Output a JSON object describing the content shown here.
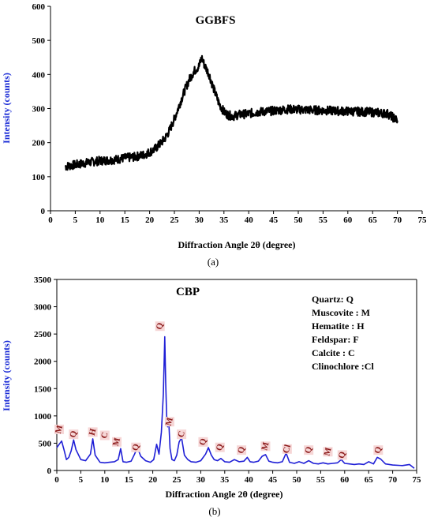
{
  "colors": {
    "series_a": "#000000",
    "series_b": "#1f1fd6",
    "ylabel_b": "#1f1fd6",
    "peak_label": "#8b1a1a",
    "peak_bg": "#f6d6d6"
  },
  "chart_data": [
    {
      "type": "line",
      "panel_label": "(a)",
      "title": "GGBFS",
      "xlabel": "Diffraction Angle 2θ  (degree)",
      "ylabel": "Intensity (counts)",
      "xlim": [
        0,
        75
      ],
      "ylim": [
        0,
        600
      ],
      "xticks": [
        0,
        5,
        10,
        15,
        20,
        25,
        30,
        35,
        40,
        45,
        50,
        55,
        60,
        65,
        70,
        75
      ],
      "yticks": [
        0,
        100,
        200,
        300,
        400,
        500,
        600
      ],
      "grid": false,
      "series": [
        {
          "x": [
            3,
            5,
            7,
            9,
            11,
            13,
            15,
            17,
            19,
            20,
            21,
            22,
            23,
            24,
            25,
            26,
            27,
            28,
            29,
            30,
            30.5,
            31,
            32,
            33,
            34,
            35,
            36,
            37,
            38,
            40,
            42,
            44,
            46,
            48,
            50,
            52,
            54,
            56,
            58,
            60,
            62,
            64,
            66,
            68,
            70
          ],
          "y": [
            130,
            135,
            140,
            145,
            148,
            150,
            155,
            158,
            165,
            172,
            180,
            195,
            210,
            235,
            270,
            310,
            350,
            385,
            410,
            425,
            450,
            430,
            400,
            355,
            315,
            290,
            280,
            278,
            282,
            285,
            290,
            292,
            295,
            298,
            297,
            296,
            295,
            294,
            293,
            292,
            291,
            290,
            288,
            285,
            265
          ]
        }
      ]
    },
    {
      "type": "line",
      "panel_label": "(b)",
      "title": "CBP",
      "xlabel": "Diffraction Angle 2θ  (degree)",
      "ylabel": "Intensity (counts)",
      "xlim": [
        0,
        75
      ],
      "ylim": [
        0,
        3500
      ],
      "xticks": [
        0,
        5,
        10,
        15,
        20,
        25,
        30,
        35,
        40,
        45,
        50,
        55,
        60,
        65,
        70,
        75
      ],
      "yticks": [
        0,
        500,
        1000,
        1500,
        2000,
        2500,
        3000,
        3500
      ],
      "grid": false,
      "legend": [
        "Quartz: Q",
        "Muscovite : M",
        "Hematite : H",
        "Feldspar: F",
        "Calcite : C",
        "Clinochlore :Cl"
      ],
      "legend_position": "top-right",
      "peak_labels": [
        {
          "label": "M",
          "x": 0.5,
          "y": 710
        },
        {
          "label": "Q",
          "x": 3.5,
          "y": 620
        },
        {
          "label": "H",
          "x": 7.5,
          "y": 660
        },
        {
          "label": "C",
          "x": 10,
          "y": 600
        },
        {
          "label": "M",
          "x": 12.5,
          "y": 480
        },
        {
          "label": "Q",
          "x": 16.5,
          "y": 380
        },
        {
          "label": "Q",
          "x": 21.5,
          "y": 2600
        },
        {
          "label": "M",
          "x": 23.5,
          "y": 850
        },
        {
          "label": "C",
          "x": 26,
          "y": 620
        },
        {
          "label": "Q",
          "x": 30.5,
          "y": 480
        },
        {
          "label": "Q",
          "x": 34,
          "y": 380
        },
        {
          "label": "Q",
          "x": 38.5,
          "y": 330
        },
        {
          "label": "M",
          "x": 43.5,
          "y": 400
        },
        {
          "label": "Cl",
          "x": 48,
          "y": 350
        },
        {
          "label": "Q",
          "x": 52.5,
          "y": 330
        },
        {
          "label": "M",
          "x": 56.5,
          "y": 300
        },
        {
          "label": "Q",
          "x": 59.5,
          "y": 240
        },
        {
          "label": "Q",
          "x": 67,
          "y": 330
        }
      ],
      "series": [
        {
          "x": [
            0,
            0.5,
            1,
            1.5,
            2,
            2.5,
            3,
            3.5,
            4,
            5,
            6,
            7,
            7.5,
            8,
            9,
            10,
            11,
            12,
            12.8,
            13.3,
            13.8,
            14.5,
            15.5,
            16.2,
            16.8,
            17.5,
            18.5,
            19.5,
            20.2,
            20.8,
            21.3,
            21.8,
            22.2,
            22.5,
            22.7,
            22.9,
            23.1,
            23.3,
            23.6,
            24,
            24.5,
            25,
            25.5,
            26,
            26.6,
            27.3,
            28,
            29,
            30,
            31,
            31.6,
            32.2,
            32.8,
            33.5,
            34.2,
            35,
            36,
            37,
            38,
            39,
            39.7,
            40.3,
            41,
            42,
            42.8,
            43.5,
            44.2,
            45,
            46,
            47,
            47.8,
            48.5,
            49.5,
            50.5,
            51.5,
            52.5,
            53.5,
            54.5,
            55.5,
            56.5,
            57.5,
            58.5,
            59.3,
            60,
            61,
            62,
            63,
            64,
            65,
            66,
            66.8,
            67.5,
            68.5,
            70,
            72,
            73.5,
            74.5
          ],
          "y": [
            420,
            480,
            540,
            380,
            200,
            240,
            360,
            560,
            380,
            200,
            180,
            300,
            580,
            280,
            150,
            140,
            150,
            160,
            200,
            400,
            160,
            150,
            170,
            300,
            420,
            260,
            180,
            150,
            200,
            480,
            300,
            700,
            1400,
            2450,
            1600,
            1000,
            800,
            960,
            400,
            200,
            180,
            280,
            520,
            600,
            280,
            200,
            160,
            150,
            180,
            300,
            420,
            280,
            200,
            180,
            220,
            160,
            150,
            200,
            160,
            170,
            240,
            160,
            150,
            170,
            260,
            290,
            170,
            150,
            140,
            160,
            320,
            150,
            130,
            160,
            130,
            180,
            130,
            120,
            140,
            120,
            130,
            140,
            200,
            130,
            120,
            110,
            120,
            110,
            160,
            120,
            240,
            210,
            120,
            100,
            90,
            110,
            40
          ]
        }
      ]
    }
  ]
}
